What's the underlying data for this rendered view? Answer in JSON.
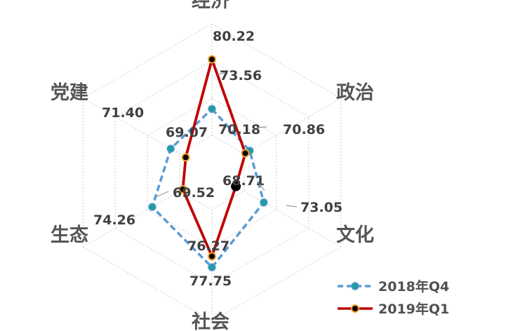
{
  "chart_data": {
    "type": "radar",
    "axes": [
      "经济",
      "政治",
      "文化",
      "社会",
      "生态",
      "党建"
    ],
    "series": [
      {
        "name": "2018年Q4",
        "values": [
          73.56,
          70.86,
          73.05,
          77.75,
          74.26,
          71.4
        ],
        "color": "#5a9bd5",
        "marker": "#1f9c9c",
        "dash": true
      },
      {
        "name": "2019年Q1",
        "values": [
          80.22,
          70.18,
          68.71,
          76.27,
          69.52,
          69.07
        ],
        "color": "#c00000",
        "marker": "#000000",
        "dash": false
      }
    ],
    "value_labels": [
      [
        "73.56",
        "70.86",
        "73.05",
        "77.75",
        "74.26",
        "71.40"
      ],
      [
        "80.22",
        "70.18",
        "68.71",
        "76.27",
        "69.52",
        "69.07"
      ]
    ],
    "range": [
      65,
      85
    ],
    "grid_levels": 4,
    "grid": true,
    "legend_position": "bottom-right"
  }
}
